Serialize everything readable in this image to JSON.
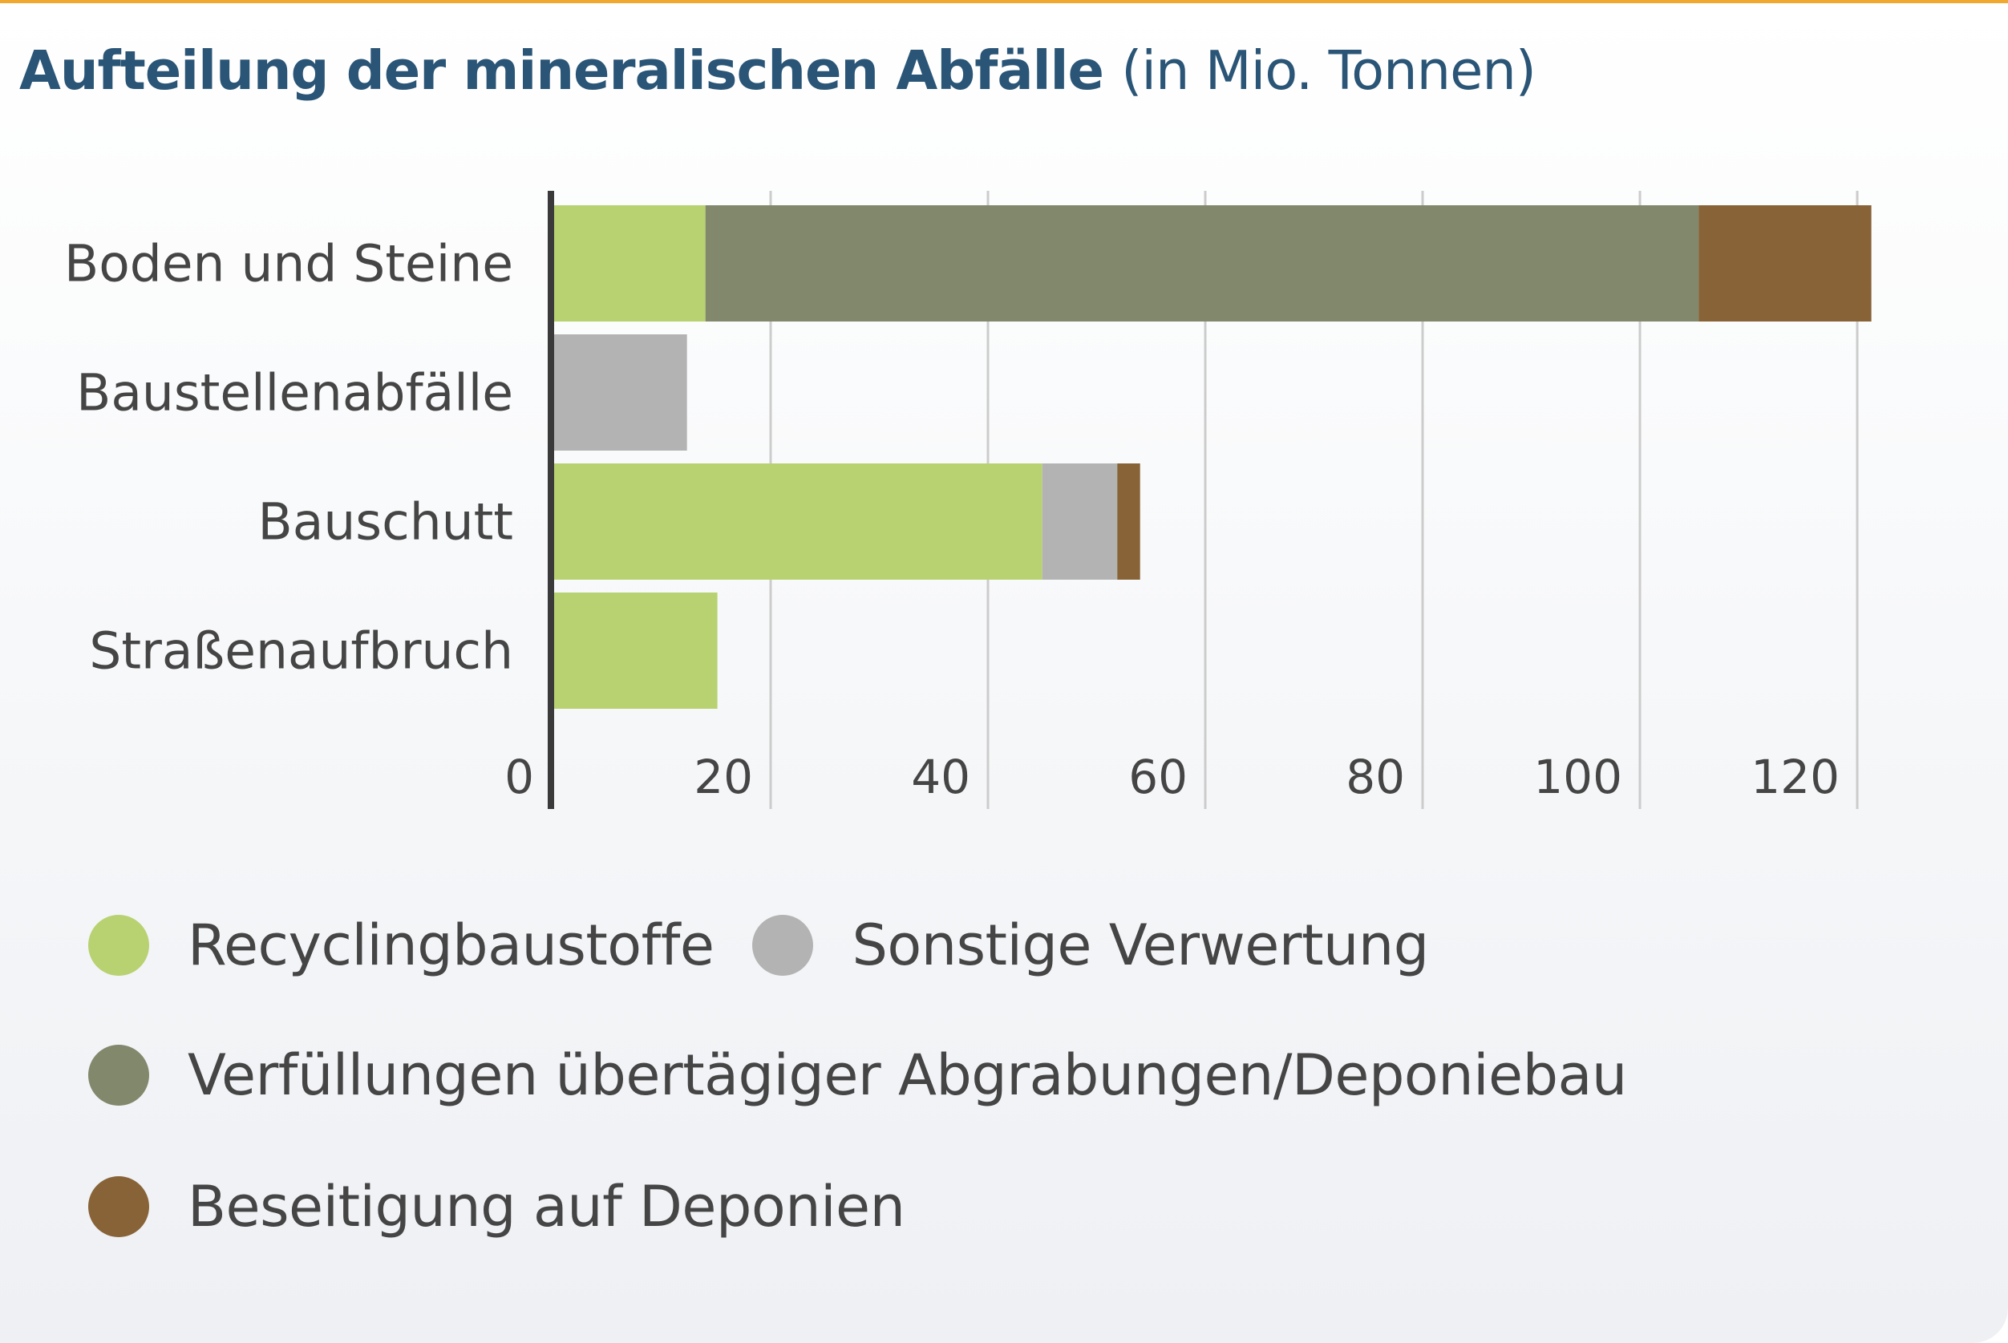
{
  "title": {
    "main": "Aufteilung der mineralischen Abfälle",
    "unit": "(in Mio. Tonnen)"
  },
  "colors": {
    "accent_top_border": "#f0a92e",
    "title": "#2a5576",
    "axis": "#3a3a3a",
    "grid": "#cccccc",
    "text": "#454545"
  },
  "chart_data": {
    "type": "bar",
    "orientation": "horizontal",
    "stacked": true,
    "title": "Aufteilung der mineralischen Abfälle (in Mio. Tonnen)",
    "xlabel": "",
    "ylabel": "",
    "xlim": [
      0,
      120
    ],
    "xticks": [
      0,
      20,
      40,
      60,
      80,
      100,
      120
    ],
    "grid": true,
    "legend_position": "bottom",
    "categories": [
      "Boden und Steine",
      "Baustellenabfälle",
      "Bauschutt",
      "Straßenaufbruch"
    ],
    "series": [
      {
        "name": "Recyclingbaustoffe",
        "color": "#b8d272",
        "values": [
          14,
          0,
          45,
          15.1
        ]
      },
      {
        "name": "Sonstige Verwertung",
        "color": "#b3b3b3",
        "values": [
          0,
          12.3,
          6.9,
          0
        ]
      },
      {
        "name": "Verfüllungen übertägiger Abgrabungen/Deponiebau",
        "color": "#82886c",
        "values": [
          91.4,
          0,
          0,
          0
        ]
      },
      {
        "name": "Beseitigung auf Deponien",
        "color": "#876337",
        "values": [
          15.9,
          0,
          2.1,
          0
        ]
      }
    ]
  },
  "legend": {
    "row1": [
      "Recyclingbaustoffe",
      "Sonstige Verwertung"
    ],
    "row2": [
      "Verfüllungen übertägiger Abgrabungen/Deponiebau"
    ],
    "row3": [
      "Beseitigung auf Deponien"
    ]
  }
}
